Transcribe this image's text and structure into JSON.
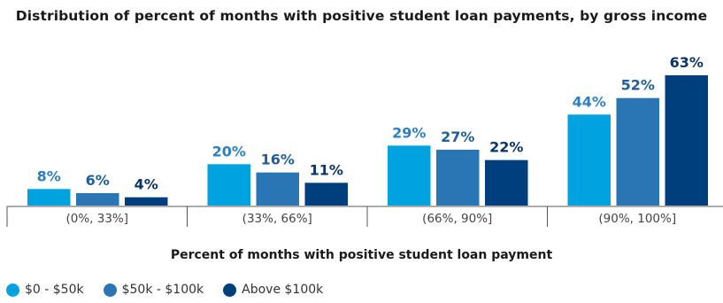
{
  "chart_data": {
    "type": "bar",
    "title": "Distribution of percent of months with positive student loan payments, by gross income",
    "xlabel": "Percent of months with positive student loan payment",
    "ylabel": "",
    "ylim": [
      0,
      70
    ],
    "grid": false,
    "legend_position": "bottom-left",
    "categories": [
      "(0%, 33%]",
      "(33%, 66%]",
      "(66%, 90%]",
      "(90%, 100%]"
    ],
    "series": [
      {
        "name": "$0 - $50k",
        "color": "#00a3e0",
        "label_color": "#2e7fc1",
        "values": [
          8,
          20,
          29,
          44
        ],
        "labels": [
          "8%",
          "20%",
          "29%",
          "44%"
        ]
      },
      {
        "name": "$50k - $100k",
        "color": "#2a75b3",
        "label_color": "#1f5e99",
        "values": [
          6,
          16,
          27,
          52
        ],
        "labels": [
          "6%",
          "16%",
          "27%",
          "52%"
        ]
      },
      {
        "name": "Above $100k",
        "color": "#003f7d",
        "label_color": "#0b3566",
        "values": [
          4,
          11,
          22,
          63
        ],
        "labels": [
          "4%",
          "11%",
          "22%",
          "63%"
        ]
      }
    ]
  }
}
